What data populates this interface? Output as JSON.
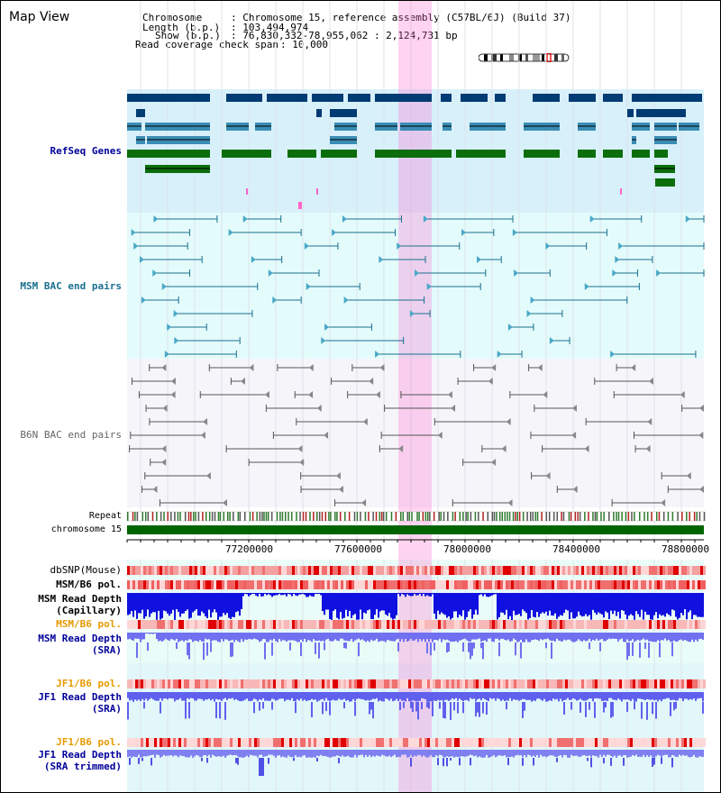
{
  "view_title": "Map View",
  "info": {
    "chromosome_label": "Chromosome",
    "chromosome_value": ": Chromosome 15, reference assembly (C57BL/6J) (Build 37)",
    "length_label": "Length (b.p.)",
    "length_value": ": 103,494,974",
    "show_label": "Show (b.p.)",
    "show_value": ": 76,830,332-78,955,062 : 2,124,731 bp",
    "coverage_label": "Read coverage check span",
    "coverage_value": ": 10,000"
  },
  "tracks": {
    "refseq": "RefSeq Genes",
    "msm_bac": "MSM BAC end pairs",
    "b6n_bac": "B6N BAC end pairs",
    "repeat": "Repeat",
    "chromosome": "chromosome 15",
    "dbsnp": "dbSNP(Mouse)",
    "msm_b6_pol_1": "MSM/B6 pol.",
    "msm_depth_cap_1": "MSM Read Depth",
    "msm_depth_cap_2": "(Capillary)",
    "msm_b6_pol_2": "MSM/B6 pol.",
    "msm_depth_sra_1": "MSM Read Depth",
    "msm_depth_sra_2": "(SRA)",
    "jf1_b6_pol_1": "JF1/B6 pol.",
    "jf1_depth_sra_1": "JF1 Read Depth",
    "jf1_depth_sra_2": "(SRA)",
    "jf1_b6_pol_2": "JF1/B6 pol.",
    "jf1_depth_trim_1": "JF1 Read Depth",
    "jf1_depth_trim_2": "(SRA trimmed)"
  },
  "axis_ticks": [
    "77200000",
    "77600000",
    "78000000",
    "78400000",
    "78800000"
  ],
  "colors": {
    "refseq_label": "#00009a",
    "msm_bac_label": "#1a6f8f",
    "b6n_bac_label": "#666666",
    "pol_label": "#e69a00",
    "depth_label": "#00009a",
    "highlight": "#ff66cc"
  }
}
